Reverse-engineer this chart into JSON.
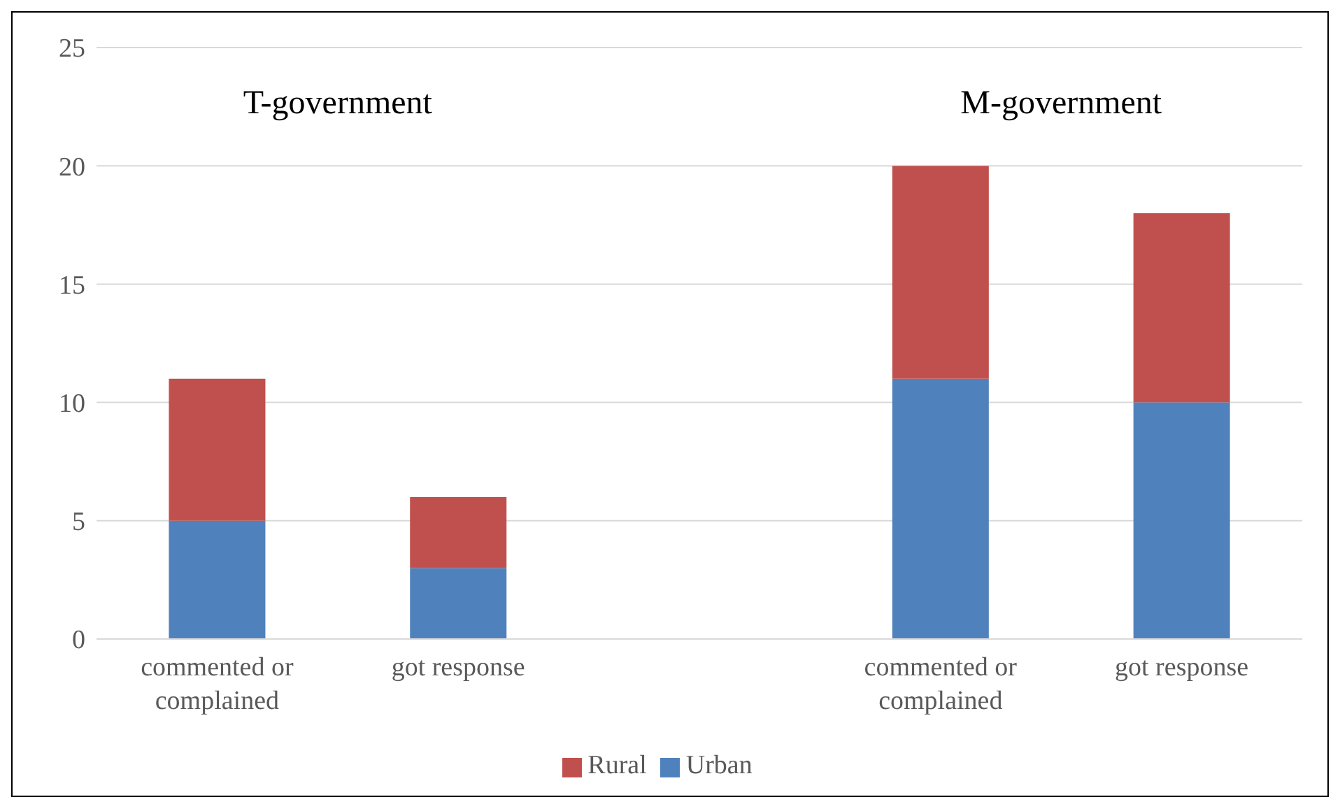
{
  "chart_data": {
    "type": "bar",
    "stacked": true,
    "categories": [
      "commented or complained",
      "got response",
      null,
      "commented or complained",
      "got response"
    ],
    "series": [
      {
        "name": "Urban",
        "color": "#4f81bd",
        "values": [
          5,
          3,
          null,
          11,
          10
        ]
      },
      {
        "name": "Rural",
        "color": "#c0504d",
        "values": [
          6,
          3,
          null,
          9,
          8
        ]
      }
    ],
    "ylim": [
      0,
      25
    ],
    "yticks": [
      0,
      5,
      10,
      15,
      20,
      25
    ],
    "grid": "y",
    "legend": "bottom",
    "annotations": [
      "T-government",
      "M-government"
    ]
  }
}
